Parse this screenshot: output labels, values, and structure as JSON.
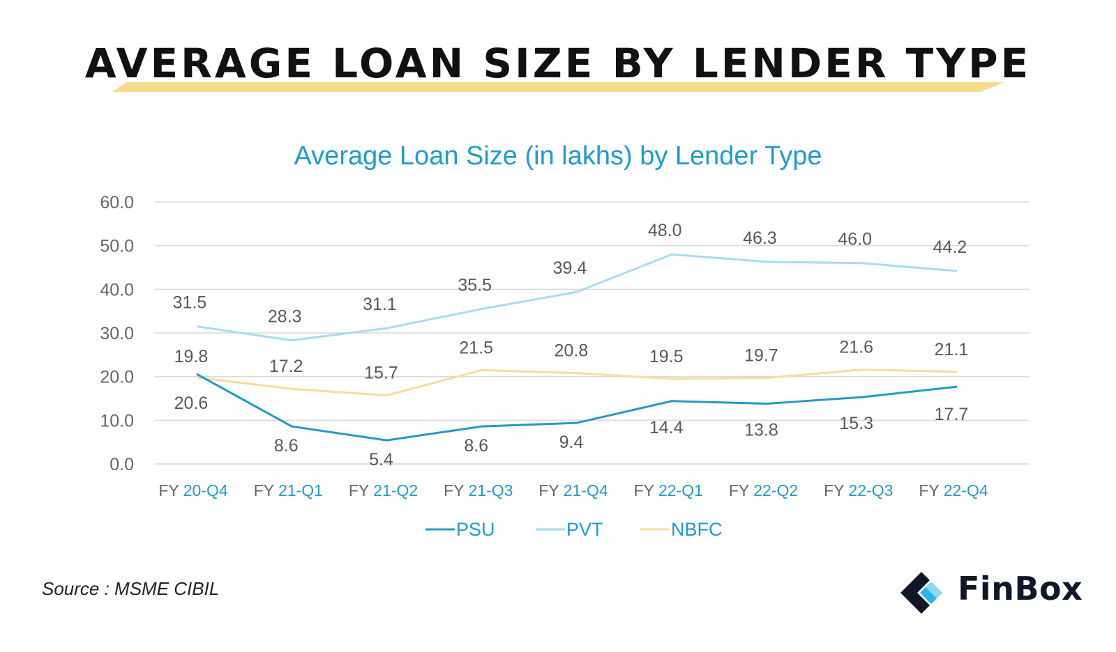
{
  "header": {
    "title": "AVERAGE LOAN SIZE BY LENDER TYPE"
  },
  "footer": {
    "source": "Source : MSME CIBIL",
    "brand": "FinBox"
  },
  "colors": {
    "psu": "#1e9bcf",
    "pvt": "#a9dcf2",
    "nbfc": "#f6dd9a",
    "banner": "#f8dc8b",
    "accent": "#1e9bcf",
    "axis_text": "#666666"
  },
  "chart_data": {
    "type": "line",
    "title": "Average Loan Size (in lakhs) by Lender Type",
    "categories": [
      {
        "prefix": "FY",
        "period": "20-Q4"
      },
      {
        "prefix": "FY",
        "period": "21-Q1"
      },
      {
        "prefix": "FY",
        "period": "21-Q2"
      },
      {
        "prefix": "FY",
        "period": "21-Q3"
      },
      {
        "prefix": "FY",
        "period": "21-Q4"
      },
      {
        "prefix": "FY",
        "period": "22-Q1"
      },
      {
        "prefix": "FY",
        "period": "22-Q2"
      },
      {
        "prefix": "FY",
        "period": "22-Q3"
      },
      {
        "prefix": "FY",
        "period": "22-Q4"
      }
    ],
    "ylim": [
      0,
      60
    ],
    "yticks": [
      "0.0",
      "10.0",
      "20.0",
      "30.0",
      "40.0",
      "50.0",
      "60.0"
    ],
    "grid": true,
    "legend_position": "bottom",
    "series": [
      {
        "key": "psu",
        "name": "PSU",
        "values": [
          20.6,
          8.6,
          5.4,
          8.6,
          9.4,
          14.4,
          13.8,
          15.3,
          17.7
        ],
        "labels": [
          "20.6",
          "8.6",
          "5.4",
          "8.6",
          "9.4",
          "14.4",
          "13.8",
          "15.3",
          "17.7"
        ]
      },
      {
        "key": "pvt",
        "name": "PVT",
        "values": [
          31.5,
          28.3,
          31.1,
          35.5,
          39.4,
          48.0,
          46.3,
          46.0,
          44.2
        ],
        "labels": [
          "31.5",
          "28.3",
          "31.1",
          "35.5",
          "39.4",
          "48.0",
          "46.3",
          "46.0",
          "44.2"
        ]
      },
      {
        "key": "nbfc",
        "name": "NBFC",
        "values": [
          19.8,
          17.2,
          15.7,
          21.5,
          20.8,
          19.5,
          19.7,
          21.6,
          21.1
        ],
        "labels": [
          "19.8",
          "17.2",
          "15.7",
          "21.5",
          "20.8",
          "19.5",
          "19.7",
          "21.6",
          "21.1"
        ]
      }
    ]
  }
}
